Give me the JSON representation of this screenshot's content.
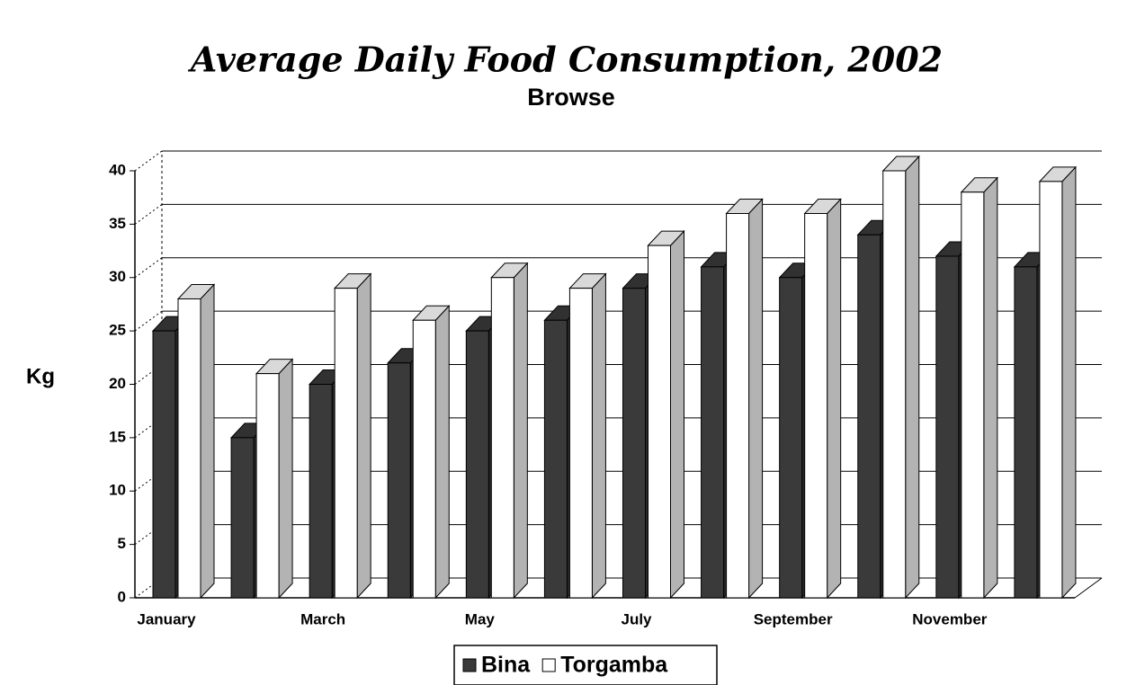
{
  "chart_data": {
    "type": "bar3d",
    "title": "Average Daily Food Consumption, 2002",
    "subtitle": "Browse",
    "y_label": "Kg",
    "categories": [
      "January",
      null,
      "March",
      null,
      "May",
      null,
      "July",
      null,
      "September",
      null,
      "November",
      null
    ],
    "series": [
      {
        "name": "Bina",
        "color": "#3a3a3a",
        "values": [
          25,
          15,
          20,
          22,
          25,
          26,
          29,
          31,
          30,
          34,
          32,
          31
        ]
      },
      {
        "name": "Torgamba",
        "color": "#ffffff",
        "values": [
          28,
          21,
          29,
          26,
          30,
          29,
          33,
          36,
          36,
          40,
          38,
          39
        ]
      }
    ],
    "ylim": [
      0,
      40
    ],
    "yticks": [
      0,
      5,
      10,
      15,
      20,
      25,
      30,
      35,
      40
    ],
    "grid": true,
    "legend": "bottom"
  }
}
